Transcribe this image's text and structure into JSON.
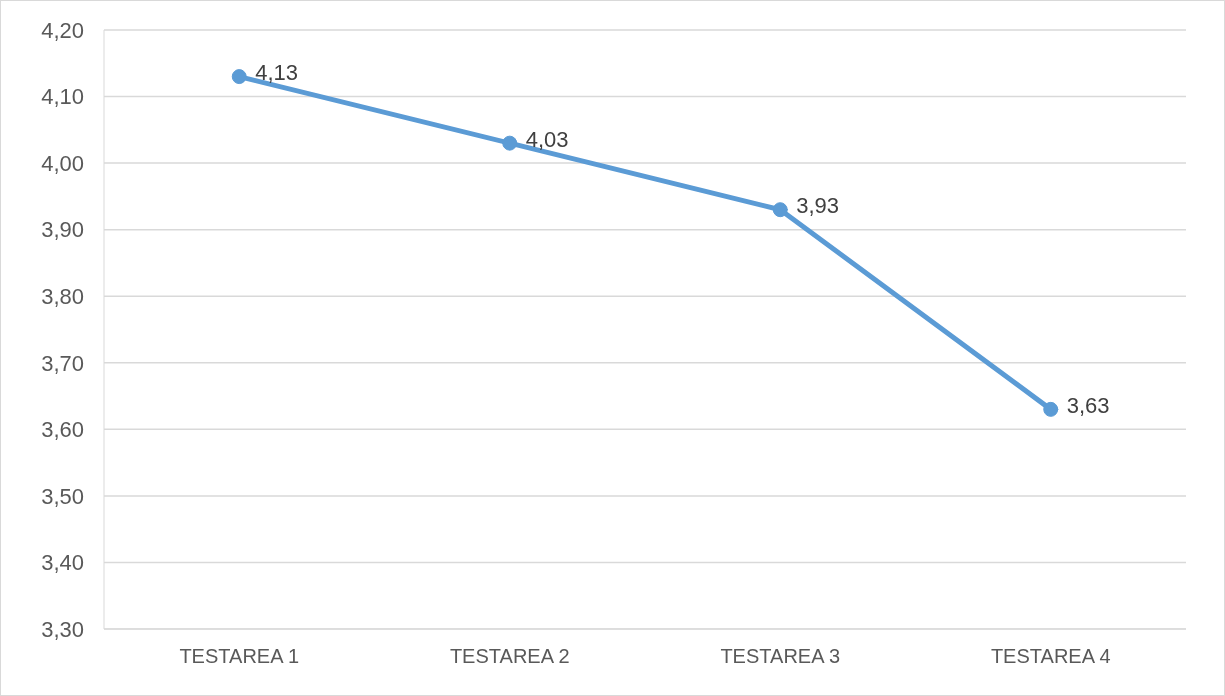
{
  "chart_data": {
    "type": "line",
    "categories": [
      "TESTAREA 1",
      "TESTAREA 2",
      "TESTAREA 3",
      "TESTAREA 4"
    ],
    "series": [
      {
        "color": "#5b9bd5",
        "values": [
          4.13,
          4.03,
          3.93,
          3.63
        ],
        "value_labels": [
          "4,13",
          "4,03",
          "3,93",
          "3,63"
        ]
      }
    ],
    "ylim": [
      3.3,
      4.2
    ],
    "yticks": [
      {
        "value": 3.3,
        "label": "3,30"
      },
      {
        "value": 3.4,
        "label": "3,40"
      },
      {
        "value": 3.5,
        "label": "3,50"
      },
      {
        "value": 3.6,
        "label": "3,60"
      },
      {
        "value": 3.7,
        "label": "3,70"
      },
      {
        "value": 3.8,
        "label": "3,80"
      },
      {
        "value": 3.9,
        "label": "3,90"
      },
      {
        "value": 4.0,
        "label": "4,00"
      },
      {
        "value": 4.1,
        "label": "4,10"
      },
      {
        "value": 4.2,
        "label": "4,20"
      }
    ],
    "grid": "y",
    "marker": "circle",
    "line_style": "solid",
    "legend": false
  }
}
